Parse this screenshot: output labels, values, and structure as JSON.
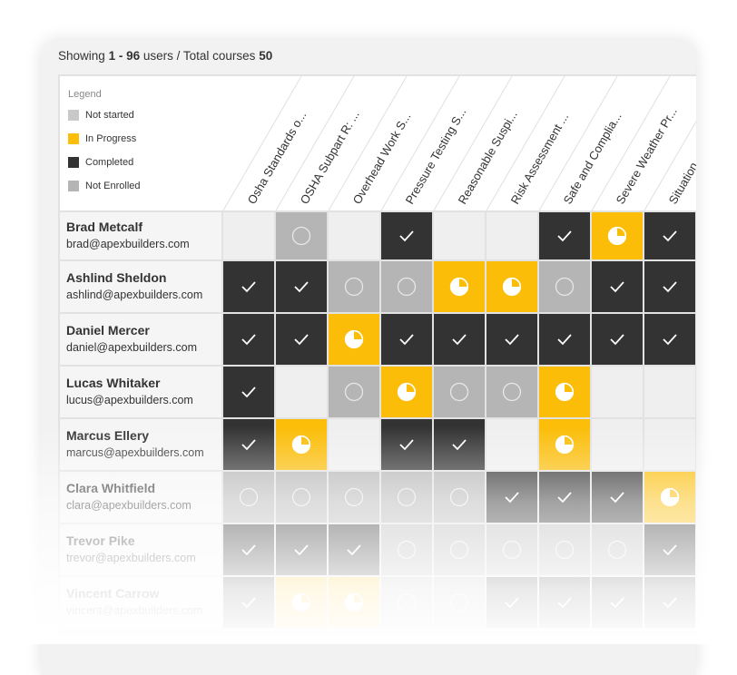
{
  "summary": {
    "prefix": "Showing",
    "range": "1 - 96",
    "mid": "users / Total courses",
    "total": "50"
  },
  "legend": {
    "title": "Legend",
    "items": [
      {
        "label": "Not started",
        "color": "#c8c8c8"
      },
      {
        "label": "In Progress",
        "color": "#fbbd08"
      },
      {
        "label": "Completed",
        "color": "#333333"
      },
      {
        "label": "Not Enrolled",
        "color": "#b5b5b5"
      }
    ]
  },
  "courses": [
    "Osha Standards o...",
    "OSHA Subpart R: ...",
    "Overhead Work S...",
    "Pressure Testing S...",
    "Reasonable Suspi...",
    "Risk Assessment ...",
    "Safe and Complia...",
    "Severe Weather Pr...",
    "Situation..."
  ],
  "status_codes": {
    "C": "completed",
    "P": "in-progress",
    "N": "not-started",
    "E": "not-enrolled"
  },
  "users": [
    {
      "name": "Brad Metcalf",
      "email": "brad@apexbuilders.com",
      "status": [
        "E",
        "N",
        "E",
        "C",
        "E",
        "E",
        "C",
        "P",
        "C"
      ]
    },
    {
      "name": "Ashlind Sheldon",
      "email": "ashlind@apexbuilders.com",
      "status": [
        "C",
        "C",
        "N",
        "N",
        "P",
        "P",
        "N",
        "C",
        "C"
      ]
    },
    {
      "name": "Daniel Mercer",
      "email": "daniel@apexbuilders.com",
      "status": [
        "C",
        "C",
        "P",
        "C",
        "C",
        "C",
        "C",
        "C",
        "C"
      ]
    },
    {
      "name": "Lucas Whitaker",
      "email": "lucus@apexbuilders.com",
      "status": [
        "C",
        "E",
        "N",
        "P",
        "N",
        "N",
        "P",
        "E",
        "E"
      ]
    },
    {
      "name": "Marcus Ellery",
      "email": "marcus@apexbuilders.com",
      "status": [
        "C",
        "P",
        "E",
        "C",
        "C",
        "E",
        "P",
        "E",
        "E"
      ]
    },
    {
      "name": "Clara Whitfield",
      "email": "clara@apexbuilders.com",
      "status": [
        "N",
        "N",
        "N",
        "N",
        "N",
        "C",
        "C",
        "C",
        "P"
      ]
    },
    {
      "name": "Trevor Pike",
      "email": "trevor@apexbuilders.com",
      "status": [
        "C",
        "C",
        "C",
        "N",
        "N",
        "N",
        "N",
        "N",
        "C"
      ]
    },
    {
      "name": "Vincent Carrow",
      "email": "vincent@apexbuilders.com",
      "status": [
        "C",
        "P",
        "P",
        "N",
        "N",
        "C",
        "C",
        "C",
        "C"
      ]
    }
  ]
}
